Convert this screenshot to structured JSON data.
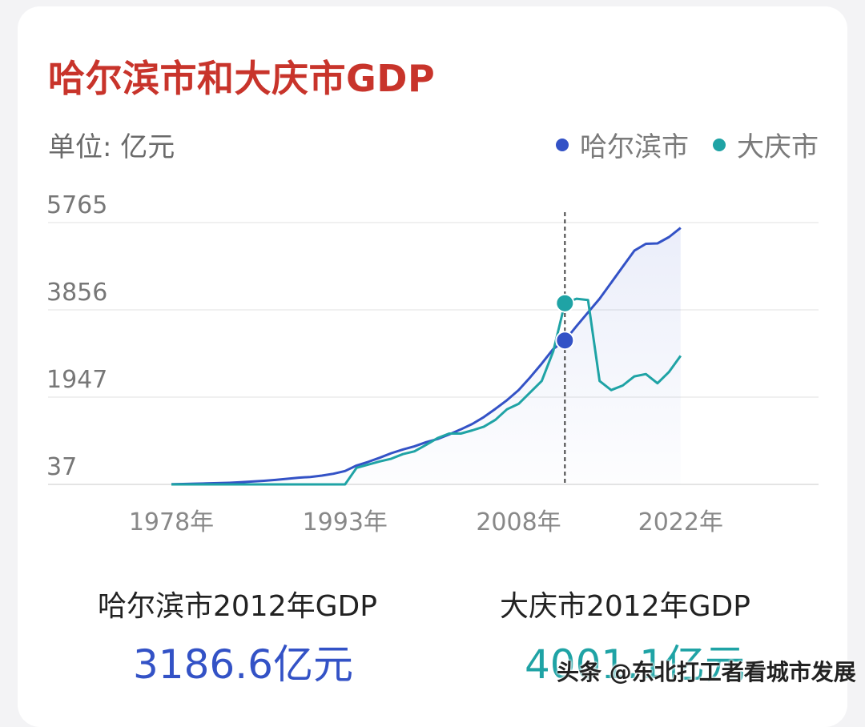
{
  "chart_data": {
    "type": "line",
    "title": "哈尔滨市和大庆市GDP",
    "unit_label": "单位: 亿元",
    "ylim": [
      37,
      5765
    ],
    "yticks": [
      "5765",
      "3856",
      "1947",
      "37"
    ],
    "xtick_labels": [
      {
        "year": 1978,
        "label": "1978年"
      },
      {
        "year": 1993,
        "label": "1993年"
      },
      {
        "year": 2008,
        "label": "2008年"
      },
      {
        "year": 2022,
        "label": "2022年"
      }
    ],
    "x": [
      1978,
      1979,
      1980,
      1981,
      1982,
      1983,
      1984,
      1985,
      1986,
      1987,
      1988,
      1989,
      1990,
      1991,
      1992,
      1993,
      1994,
      1995,
      1996,
      1997,
      1998,
      1999,
      2000,
      2001,
      2002,
      2003,
      2004,
      2005,
      2006,
      2007,
      2008,
      2009,
      2010,
      2011,
      2012,
      2013,
      2014,
      2015,
      2016,
      2017,
      2018,
      2019,
      2020,
      2021,
      2022
    ],
    "series": [
      {
        "name": "哈尔滨市",
        "color": "#3352c6",
        "values": [
          40,
          45,
          52,
          58,
          65,
          72,
          85,
          100,
          115,
          135,
          160,
          185,
          200,
          230,
          270,
          330,
          450,
          530,
          620,
          720,
          800,
          870,
          960,
          1030,
          1130,
          1240,
          1360,
          1510,
          1690,
          1880,
          2100,
          2380,
          2680,
          3000,
          3186.6,
          3500,
          3800,
          4100,
          4450,
          4800,
          5150,
          5300,
          5310,
          5450,
          5650
        ]
      },
      {
        "name": "大庆市",
        "color": "#1fa3a5",
        "values": [
          37,
          37,
          37,
          37,
          37,
          37,
          37,
          37,
          37,
          37,
          37,
          37,
          37,
          37,
          37,
          37,
          400,
          470,
          540,
          600,
          700,
          760,
          900,
          1050,
          1150,
          1150,
          1220,
          1300,
          1450,
          1680,
          1800,
          2050,
          2300,
          2950,
          4001.1,
          4100,
          4070,
          2300,
          2100,
          2200,
          2400,
          2450,
          2250,
          2500,
          2850
        ]
      }
    ],
    "highlight_year": 2012,
    "grid": true,
    "legend_position": "top-right"
  },
  "stats": [
    {
      "label": "哈尔滨市2012年GDP",
      "value": "3186.6亿元",
      "color": "#3352c6"
    },
    {
      "label": "大庆市2012年GDP",
      "value": "4001.1亿元",
      "color": "#1fa3a5"
    }
  ],
  "watermark": "头条 @东北打工者看城市发展"
}
